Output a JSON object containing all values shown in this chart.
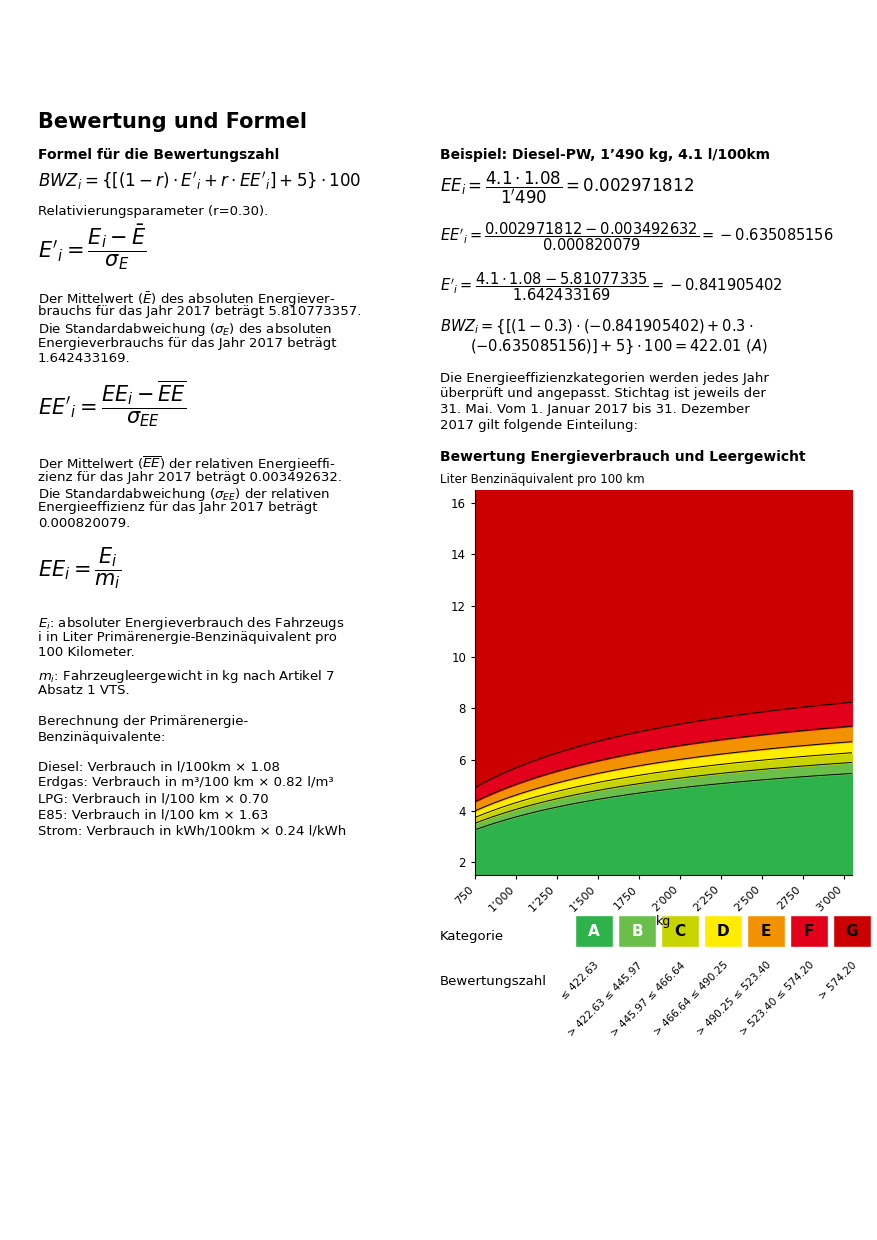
{
  "title": "Bewertung und Formel",
  "bg_color": "#ffffff",
  "categories": [
    "A",
    "B",
    "C",
    "D",
    "E",
    "F",
    "G"
  ],
  "cat_colors_box": [
    "#2db34a",
    "#6abf4b",
    "#c8d400",
    "#ffed00",
    "#f39200",
    "#e2001a",
    "#cc0000"
  ],
  "bwz_labels": [
    "≤ 422.63",
    "> 422.63 ≤ 445.97",
    "> 445.97 ≤ 466.64",
    "> 466.64 ≤ 490.25",
    "> 490.25 ≤ 523.40",
    "> 523.40 ≤ 574.20",
    "> 574.20"
  ],
  "x_ticks": [
    750,
    1000,
    1250,
    1500,
    1750,
    2000,
    2250,
    2500,
    2750,
    3000
  ],
  "x_tick_labels": [
    "750",
    "1’000",
    "1’250",
    "1’500",
    "1750",
    "2’000",
    "2’250",
    "2’500",
    "2750",
    "3’000"
  ],
  "y_ticks": [
    2,
    4,
    6,
    8,
    10,
    12,
    14,
    16
  ],
  "bwz_boundaries": [
    422.63,
    445.97,
    466.64,
    490.25,
    523.4,
    574.2
  ],
  "area_colors": [
    "#2db34a",
    "#6abf4b",
    "#c8d400",
    "#ffed00",
    "#f39200",
    "#e2001a",
    "#cc0000"
  ],
  "meanE": 5.810773357,
  "sigE": 1.642433169,
  "meanEE": 0.003492632,
  "sigEE": 0.000820079,
  "r": 0.3
}
